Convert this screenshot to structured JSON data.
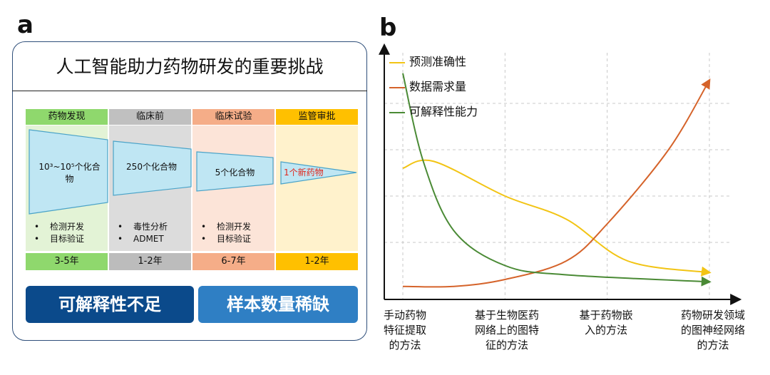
{
  "panel_a": {
    "letter": "a",
    "title": "人工智能助力药物研发的重要挑战",
    "stages": [
      {
        "name": "药物发现",
        "compounds": "10³~10⁵个化合物",
        "bullets": [
          "检测开发",
          "目标验证"
        ],
        "duration": "3-5年",
        "head_color": "#8fd86d",
        "bg_color": "#e3f3d6",
        "foot_color": "#8fd86d"
      },
      {
        "name": "临床前",
        "compounds": "250个化合物",
        "bullets": [
          "毒性分析",
          "ADMET"
        ],
        "duration": "1-2年",
        "head_color": "#c0c0c0",
        "bg_color": "#dcdcdc",
        "foot_color": "#bcbcbc"
      },
      {
        "name": "临床试验",
        "compounds": "5个化合物",
        "bullets": [
          "检测开发",
          "目标验证"
        ],
        "duration": "6-7年",
        "head_color": "#f5ad88",
        "bg_color": "#fce4d8",
        "foot_color": "#f5ad88"
      },
      {
        "name": "监管审批",
        "compounds": "1个新药物",
        "bullets": [],
        "duration": "1-2年",
        "head_color": "#ffc000",
        "bg_color": "#fff2cc",
        "foot_color": "#ffc000"
      }
    ],
    "buttons": {
      "left": "可解释性不足",
      "right": "样本数量稀缺",
      "left_color": "#0b4a8b",
      "right_color": "#2f7fc4"
    }
  },
  "panel_b": {
    "letter": "b",
    "chart_data": {
      "type": "line",
      "categories": [
        "手动药物特征提取的方法",
        "基于生物医药网络上的图特征的方法",
        "基于药物嵌入的方法",
        "药物研发领域的图神经网络的方法"
      ],
      "category_lines": [
        [
          "手动药物",
          "特征提取",
          "的方法"
        ],
        [
          "基于生物医药",
          "网络上的图特",
          "征的方法"
        ],
        [
          "基于药物嵌",
          "入的方法"
        ],
        [
          "药物研发领域",
          "的图神经网络",
          "的方法"
        ]
      ],
      "series": [
        {
          "name": "预测准确性",
          "color": "#f2c414",
          "values": [
            [
              0,
              0.52
            ],
            [
              0.3,
              0.55
            ],
            [
              1,
              0.4
            ],
            [
              1.6,
              0.3
            ],
            [
              2.2,
              0.12
            ],
            [
              3,
              0.07
            ]
          ]
        },
        {
          "name": "数据需求量",
          "color": "#d5632a",
          "values": [
            [
              0,
              0.01
            ],
            [
              0.5,
              0.01
            ],
            [
              1,
              0.04
            ],
            [
              1.6,
              0.12
            ],
            [
              2,
              0.28
            ],
            [
              2.6,
              0.6
            ],
            [
              3,
              0.9
            ]
          ]
        },
        {
          "name": "可解释性能力",
          "color": "#4a8a35",
          "values": [
            [
              0,
              0.93
            ],
            [
              0.2,
              0.55
            ],
            [
              0.5,
              0.25
            ],
            [
              1,
              0.1
            ],
            [
              1.6,
              0.06
            ],
            [
              3,
              0.03
            ]
          ]
        }
      ],
      "grid": true,
      "legend": "top-left"
    }
  }
}
